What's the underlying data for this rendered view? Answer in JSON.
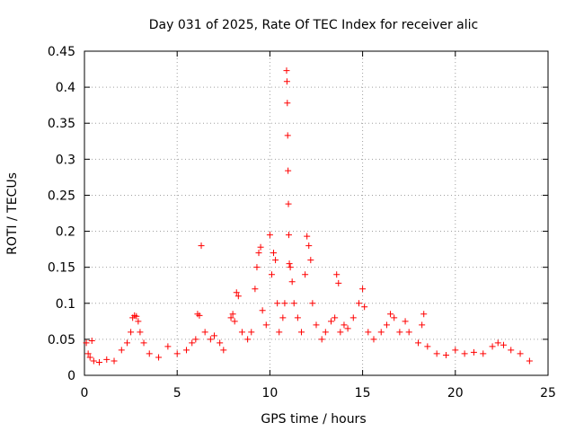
{
  "chart_data": {
    "type": "scatter",
    "title": "Day 031 of 2025, Rate Of TEC Index for receiver alic",
    "xlabel": "GPS time / hours",
    "ylabel": "ROTI / TECUs",
    "xlim": [
      0,
      25
    ],
    "ylim": [
      0,
      0.45
    ],
    "xticks": [
      0,
      5,
      10,
      15,
      20,
      25
    ],
    "xtick_labels": [
      "0",
      "5",
      "10",
      "15",
      "20",
      "25"
    ],
    "yticks": [
      0,
      0.05,
      0.1,
      0.15,
      0.2,
      0.25,
      0.3,
      0.35,
      0.4,
      0.45
    ],
    "ytick_labels": [
      "0",
      "0.05",
      "0.1",
      "0.15",
      "0.2",
      "0.25",
      "0.3",
      "0.35",
      "0.4",
      "0.45"
    ],
    "grid": true,
    "marker": "plus",
    "color": "#ff0000",
    "points": [
      [
        0.1,
        0.045
      ],
      [
        0.2,
        0.03
      ],
      [
        0.3,
        0.025
      ],
      [
        0.4,
        0.048
      ],
      [
        0.5,
        0.02
      ],
      [
        0.8,
        0.018
      ],
      [
        1.2,
        0.022
      ],
      [
        1.6,
        0.02
      ],
      [
        2.0,
        0.035
      ],
      [
        2.3,
        0.045
      ],
      [
        2.5,
        0.06
      ],
      [
        2.6,
        0.08
      ],
      [
        2.7,
        0.083
      ],
      [
        2.8,
        0.082
      ],
      [
        2.9,
        0.075
      ],
      [
        3.0,
        0.06
      ],
      [
        3.2,
        0.045
      ],
      [
        3.5,
        0.03
      ],
      [
        4.0,
        0.025
      ],
      [
        4.5,
        0.04
      ],
      [
        5.0,
        0.03
      ],
      [
        5.5,
        0.035
      ],
      [
        5.8,
        0.045
      ],
      [
        6.0,
        0.05
      ],
      [
        6.1,
        0.085
      ],
      [
        6.2,
        0.083
      ],
      [
        6.3,
        0.18
      ],
      [
        6.5,
        0.06
      ],
      [
        6.8,
        0.05
      ],
      [
        7.0,
        0.055
      ],
      [
        7.3,
        0.045
      ],
      [
        7.5,
        0.035
      ],
      [
        7.9,
        0.08
      ],
      [
        8.0,
        0.085
      ],
      [
        8.1,
        0.075
      ],
      [
        8.2,
        0.115
      ],
      [
        8.3,
        0.11
      ],
      [
        8.5,
        0.06
      ],
      [
        8.8,
        0.05
      ],
      [
        9.0,
        0.06
      ],
      [
        9.2,
        0.12
      ],
      [
        9.3,
        0.15
      ],
      [
        9.4,
        0.17
      ],
      [
        9.5,
        0.178
      ],
      [
        9.6,
        0.09
      ],
      [
        9.8,
        0.07
      ],
      [
        10.0,
        0.195
      ],
      [
        10.1,
        0.14
      ],
      [
        10.2,
        0.17
      ],
      [
        10.3,
        0.16
      ],
      [
        10.4,
        0.1
      ],
      [
        10.5,
        0.06
      ],
      [
        10.7,
        0.08
      ],
      [
        10.8,
        0.1
      ],
      [
        10.9,
        0.423
      ],
      [
        10.92,
        0.408
      ],
      [
        10.94,
        0.378
      ],
      [
        10.96,
        0.333
      ],
      [
        10.98,
        0.284
      ],
      [
        11.0,
        0.238
      ],
      [
        11.02,
        0.195
      ],
      [
        11.05,
        0.155
      ],
      [
        11.1,
        0.15
      ],
      [
        11.2,
        0.13
      ],
      [
        11.3,
        0.1
      ],
      [
        11.5,
        0.08
      ],
      [
        11.7,
        0.06
      ],
      [
        11.9,
        0.14
      ],
      [
        12.0,
        0.193
      ],
      [
        12.1,
        0.18
      ],
      [
        12.2,
        0.16
      ],
      [
        12.3,
        0.1
      ],
      [
        12.5,
        0.07
      ],
      [
        12.8,
        0.05
      ],
      [
        13.0,
        0.06
      ],
      [
        13.3,
        0.075
      ],
      [
        13.5,
        0.08
      ],
      [
        13.6,
        0.14
      ],
      [
        13.7,
        0.128
      ],
      [
        13.8,
        0.06
      ],
      [
        14.0,
        0.07
      ],
      [
        14.2,
        0.065
      ],
      [
        14.5,
        0.08
      ],
      [
        14.8,
        0.1
      ],
      [
        15.0,
        0.12
      ],
      [
        15.1,
        0.095
      ],
      [
        15.3,
        0.06
      ],
      [
        15.6,
        0.05
      ],
      [
        16.0,
        0.06
      ],
      [
        16.3,
        0.07
      ],
      [
        16.5,
        0.085
      ],
      [
        16.7,
        0.08
      ],
      [
        17.0,
        0.06
      ],
      [
        17.3,
        0.075
      ],
      [
        17.5,
        0.06
      ],
      [
        18.0,
        0.045
      ],
      [
        18.2,
        0.07
      ],
      [
        18.3,
        0.085
      ],
      [
        18.5,
        0.04
      ],
      [
        19.0,
        0.03
      ],
      [
        19.5,
        0.028
      ],
      [
        20.0,
        0.035
      ],
      [
        20.5,
        0.03
      ],
      [
        21.0,
        0.032
      ],
      [
        21.5,
        0.03
      ],
      [
        22.0,
        0.04
      ],
      [
        22.3,
        0.045
      ],
      [
        22.6,
        0.042
      ],
      [
        23.0,
        0.035
      ],
      [
        23.5,
        0.03
      ],
      [
        24.0,
        0.02
      ]
    ]
  }
}
